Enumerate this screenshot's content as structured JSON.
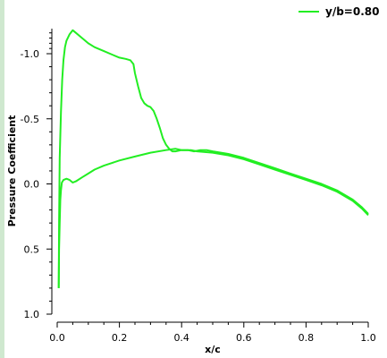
{
  "chart_data": {
    "type": "line",
    "xlabel": "x/c",
    "ylabel": "Pressure Coefficient",
    "xlim": [
      0.0,
      1.0
    ],
    "ylim": [
      1.0,
      -1.2
    ],
    "inverted_y": true,
    "grid": false,
    "legend_position": "top-right",
    "x_ticks": [
      "0.0",
      "0.2",
      "0.4",
      "0.6",
      "0.8",
      "1.0"
    ],
    "x_tick_values": [
      0.0,
      0.2,
      0.4,
      0.6,
      0.8,
      1.0
    ],
    "y_ticks": [
      "-1.0",
      "-0.5",
      "0.0",
      "0.5",
      "1.0"
    ],
    "y_tick_values": [
      -1.0,
      -0.5,
      0.0,
      0.5,
      1.0
    ],
    "series": [
      {
        "name": "y/b=0.80",
        "color": "#22ee22",
        "points": [
          [
            0.005,
            0.8
          ],
          [
            0.006,
            0.3
          ],
          [
            0.008,
            -0.2
          ],
          [
            0.012,
            -0.55
          ],
          [
            0.016,
            -0.8
          ],
          [
            0.02,
            -0.95
          ],
          [
            0.025,
            -1.05
          ],
          [
            0.03,
            -1.1
          ],
          [
            0.04,
            -1.15
          ],
          [
            0.05,
            -1.18
          ],
          [
            0.06,
            -1.16
          ],
          [
            0.08,
            -1.12
          ],
          [
            0.1,
            -1.08
          ],
          [
            0.12,
            -1.05
          ],
          [
            0.15,
            -1.02
          ],
          [
            0.18,
            -0.99
          ],
          [
            0.2,
            -0.97
          ],
          [
            0.22,
            -0.96
          ],
          [
            0.235,
            -0.95
          ],
          [
            0.245,
            -0.92
          ],
          [
            0.25,
            -0.85
          ],
          [
            0.26,
            -0.75
          ],
          [
            0.27,
            -0.66
          ],
          [
            0.28,
            -0.62
          ],
          [
            0.29,
            -0.6
          ],
          [
            0.3,
            -0.59
          ],
          [
            0.31,
            -0.56
          ],
          [
            0.32,
            -0.5
          ],
          [
            0.33,
            -0.43
          ],
          [
            0.34,
            -0.35
          ],
          [
            0.35,
            -0.3
          ],
          [
            0.36,
            -0.27
          ],
          [
            0.37,
            -0.25
          ],
          [
            0.38,
            -0.25
          ],
          [
            0.4,
            -0.26
          ],
          [
            0.42,
            -0.26
          ],
          [
            0.44,
            -0.25
          ],
          [
            0.46,
            -0.26
          ],
          [
            0.48,
            -0.26
          ],
          [
            0.5,
            -0.25
          ],
          [
            0.55,
            -0.23
          ],
          [
            0.6,
            -0.2
          ],
          [
            0.65,
            -0.16
          ],
          [
            0.7,
            -0.12
          ],
          [
            0.75,
            -0.08
          ],
          [
            0.8,
            -0.04
          ],
          [
            0.85,
            0.0
          ],
          [
            0.9,
            0.05
          ],
          [
            0.95,
            0.12
          ],
          [
            0.98,
            0.18
          ],
          [
            1.0,
            0.23
          ]
        ]
      },
      {
        "name": "",
        "color": "#22ee22",
        "points": [
          [
            0.005,
            0.8
          ],
          [
            0.006,
            0.5
          ],
          [
            0.008,
            0.3
          ],
          [
            0.01,
            0.12
          ],
          [
            0.012,
            0.05
          ],
          [
            0.015,
            -0.01
          ],
          [
            0.02,
            -0.03
          ],
          [
            0.03,
            -0.04
          ],
          [
            0.04,
            -0.03
          ],
          [
            0.05,
            -0.01
          ],
          [
            0.06,
            -0.02
          ],
          [
            0.08,
            -0.05
          ],
          [
            0.1,
            -0.08
          ],
          [
            0.12,
            -0.11
          ],
          [
            0.15,
            -0.14
          ],
          [
            0.2,
            -0.18
          ],
          [
            0.25,
            -0.21
          ],
          [
            0.3,
            -0.24
          ],
          [
            0.35,
            -0.26
          ],
          [
            0.38,
            -0.27
          ],
          [
            0.4,
            -0.26
          ],
          [
            0.43,
            -0.26
          ],
          [
            0.45,
            -0.25
          ],
          [
            0.5,
            -0.24
          ],
          [
            0.55,
            -0.22
          ],
          [
            0.6,
            -0.19
          ],
          [
            0.65,
            -0.15
          ],
          [
            0.7,
            -0.11
          ],
          [
            0.75,
            -0.07
          ],
          [
            0.8,
            -0.03
          ],
          [
            0.85,
            0.01
          ],
          [
            0.9,
            0.06
          ],
          [
            0.95,
            0.13
          ],
          [
            0.98,
            0.19
          ],
          [
            1.0,
            0.24
          ]
        ]
      }
    ]
  }
}
